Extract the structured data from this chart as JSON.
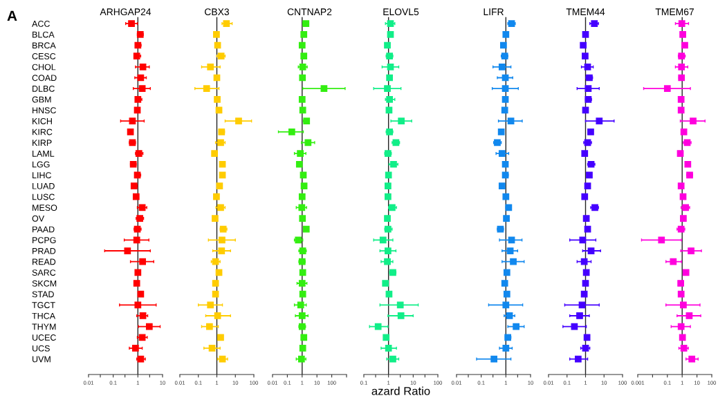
{
  "chart_data": [
    {
      "type": "scatter",
      "orientation": "horizontal",
      "title": "ARHGAP24",
      "log": "x",
      "marker": "square",
      "grid": false,
      "legend": false,
      "annotations": [
        "A"
      ],
      "categories": [
        "ACC",
        "BLCA",
        "BRCA",
        "CESC",
        "CHOL",
        "COAD",
        "DLBC",
        "GBM",
        "HNSC",
        "KICH",
        "KIRC",
        "KIRP",
        "LAML",
        "LGG",
        "LIHC",
        "LUAD",
        "LUSC",
        "MESO",
        "OV",
        "PAAD",
        "PCPG",
        "PRAD",
        "READ",
        "SARC",
        "SKCM",
        "STAD",
        "TGCT",
        "THCA",
        "THYM",
        "UCEC",
        "UCS",
        "UVM"
      ],
      "xlim": [
        0.01,
        10
      ],
      "xticks": [
        0.01,
        {
          "value": 0.03,
          "label": null
        },
        0.1,
        {
          "value": 0.3,
          "label": null
        },
        1,
        {
          "value": 3,
          "label": null
        },
        10
      ],
      "ref_lines": [
        {
          "axis": "x",
          "value": 1,
          "color": "#222222"
        }
      ],
      "series": [
        {
          "color": "#ff0000",
          "values": [
            0.55,
            1.25,
            1.0,
            0.9,
            1.6,
            1.3,
            1.5,
            1.0,
            0.95,
            0.6,
            0.5,
            0.6,
            1.1,
            0.65,
            0.95,
            0.7,
            0.85,
            1.5,
            1.2,
            0.95,
            0.9,
            0.38,
            1.55,
            1.0,
            0.9,
            1.3,
            1.0,
            1.6,
            2.9,
            1.5,
            0.8,
            1.3
          ],
          "errors": [
            [
              0.32,
              0.97
            ],
            [
              0.95,
              1.65
            ],
            [
              0.8,
              1.35
            ],
            [
              0.7,
              1.3
            ],
            [
              0.8,
              2.9
            ],
            [
              0.75,
              2.2
            ],
            [
              0.65,
              3.2
            ],
            [
              0.8,
              1.45
            ],
            [
              0.85,
              1.1
            ],
            [
              0.2,
              1.8
            ],
            [
              0.45,
              0.57
            ],
            [
              0.45,
              0.8
            ],
            [
              0.8,
              1.6
            ],
            [
              0.5,
              0.85
            ],
            [
              0.75,
              1.3
            ],
            [
              0.55,
              0.95
            ],
            [
              0.75,
              1.0
            ],
            [
              0.95,
              2.3
            ],
            [
              0.85,
              1.7
            ],
            [
              0.7,
              1.35
            ],
            [
              0.28,
              2.8
            ],
            [
              0.045,
              3.2
            ],
            [
              0.5,
              4.4
            ],
            [
              0.85,
              1.2
            ],
            [
              0.85,
              1.0
            ],
            [
              1.05,
              1.55
            ],
            [
              0.18,
              5.5
            ],
            [
              0.9,
              2.5
            ],
            [
              1.05,
              8
            ],
            [
              0.95,
              2.4
            ],
            [
              0.45,
              1.5
            ],
            [
              0.9,
              2.0
            ]
          ]
        }
      ]
    },
    {
      "type": "scatter",
      "orientation": "horizontal",
      "title": "CBX3",
      "log": "x",
      "marker": "square",
      "grid": false,
      "legend": false,
      "categories": [
        null,
        null,
        null,
        null,
        null,
        null,
        null,
        null,
        null,
        null,
        null,
        null,
        null,
        null,
        null,
        null,
        null,
        null,
        null,
        null,
        null,
        null,
        null,
        null,
        null,
        null,
        null,
        null,
        null,
        null,
        null,
        null
      ],
      "xlim": [
        0.01,
        100
      ],
      "xticks": [
        0.01,
        0.1,
        1,
        10,
        100
      ],
      "ref_lines": [
        {
          "axis": "x",
          "value": 1,
          "color": "#222222"
        }
      ],
      "series": [
        {
          "color": "#ffcc00",
          "values": [
            3.3,
            0.95,
            1.1,
            1.7,
            0.45,
            1.0,
            0.28,
            1.05,
            1.3,
            15,
            1.8,
            1.6,
            0.75,
            2.0,
            2.0,
            1.4,
            0.95,
            1.6,
            0.8,
            2.2,
            1.9,
            1.8,
            0.85,
            1.3,
            0.85,
            0.85,
            0.45,
            1.1,
            0.4,
            1.6,
            0.55,
            2.0
          ],
          "errors": [
            [
              1.9,
              6.7
            ],
            [
              0.8,
              1.1
            ],
            [
              0.95,
              1.3
            ],
            [
              1.0,
              2.8
            ],
            [
              0.15,
              1.5
            ],
            [
              0.85,
              1.15
            ],
            [
              0.065,
              1.3
            ],
            [
              0.85,
              1.3
            ],
            [
              1.15,
              1.5
            ],
            [
              2.8,
              75
            ],
            [
              1.3,
              2.6
            ],
            [
              0.85,
              2.8
            ],
            [
              0.55,
              1.05
            ],
            [
              1.6,
              2.5
            ],
            [
              1.7,
              2.4
            ],
            null,
            [
              0.8,
              1.15
            ],
            [
              0.9,
              2.8
            ],
            null,
            [
              1.5,
              3.5
            ],
            [
              0.35,
              10
            ],
            [
              0.6,
              5.5
            ],
            [
              0.5,
              1.5
            ],
            [
              1.05,
              1.6
            ],
            [
              0.75,
              0.95
            ],
            [
              0.72,
              1.0
            ],
            [
              0.1,
              2.0
            ],
            [
              0.25,
              5.5
            ],
            [
              0.15,
              1.2
            ],
            [
              1.35,
              1.9
            ],
            [
              0.2,
              1.5
            ],
            [
              1.1,
              3.8
            ]
          ]
        }
      ]
    },
    {
      "type": "scatter",
      "orientation": "horizontal",
      "title": "CNTNAP2",
      "log": "x",
      "marker": "square",
      "grid": false,
      "legend": false,
      "categories": [
        null,
        null,
        null,
        null,
        null,
        null,
        null,
        null,
        null,
        null,
        null,
        null,
        null,
        null,
        null,
        null,
        null,
        null,
        null,
        null,
        null,
        null,
        null,
        null,
        null,
        null,
        null,
        null,
        null,
        null,
        null,
        null
      ],
      "xlim": [
        0.01,
        1000
      ],
      "xticks": [
        0.01,
        0.1,
        1,
        10,
        100,
        {
          "value": 1000,
          "label": null
        }
      ],
      "ref_lines": [
        {
          "axis": "x",
          "value": 1,
          "color": "#222222"
        }
      ],
      "series": [
        {
          "color": "#33ee11",
          "values": [
            1.8,
            1.3,
            1.0,
            1.3,
            1.1,
            1.05,
            30,
            1.0,
            1.1,
            2.0,
            0.2,
            2.5,
            0.75,
            0.65,
            1.2,
            1.35,
            1.0,
            0.95,
            1.05,
            1.9,
            0.55,
            1.1,
            1.0,
            1.1,
            1.0,
            1.1,
            0.8,
            1.0,
            1.0,
            1.3,
            1.1,
            0.9
          ],
          "errors": [
            [
              1.1,
              2.8
            ],
            [
              1.1,
              1.5
            ],
            null,
            [
              1.1,
              1.5
            ],
            [
              0.55,
              2.2
            ],
            [
              0.9,
              1.2
            ],
            [
              1.1,
              800
            ],
            null,
            [
              0.95,
              1.3
            ],
            [
              1.2,
              3.0
            ],
            [
              0.025,
              1.2
            ],
            [
              0.9,
              7
            ],
            [
              0.3,
              1.8
            ],
            null,
            [
              1.0,
              1.35
            ],
            [
              1.15,
              1.6
            ],
            null,
            [
              0.4,
              2.0
            ],
            [
              0.75,
              1.4
            ],
            [
              1.5,
              2.3
            ],
            [
              0.3,
              1.1
            ],
            [
              0.6,
              1.9
            ],
            [
              0.6,
              1.6
            ],
            [
              0.95,
              1.3
            ],
            [
              0.45,
              2.1
            ],
            [
              0.95,
              1.3
            ],
            [
              0.3,
              1.9
            ],
            [
              0.35,
              2.5
            ],
            [
              0.6,
              1.7
            ],
            [
              1.1,
              1.5
            ],
            [
              0.8,
              1.5
            ],
            [
              0.4,
              1.8
            ]
          ]
        }
      ]
    },
    {
      "type": "scatter",
      "orientation": "horizontal",
      "title": "ELOVL5",
      "xlabel": "azard Ratio",
      "log": "x",
      "marker": "square",
      "grid": false,
      "legend": false,
      "categories": [
        null,
        null,
        null,
        null,
        null,
        null,
        null,
        null,
        null,
        null,
        null,
        null,
        null,
        null,
        null,
        null,
        null,
        null,
        null,
        null,
        null,
        null,
        null,
        null,
        null,
        null,
        null,
        null,
        null,
        null,
        null,
        null
      ],
      "xlim": [
        0.1,
        100
      ],
      "xticks": [
        0.1,
        {
          "value": 0.3,
          "label": null
        },
        1,
        {
          "value": 3,
          "label": null
        },
        10,
        {
          "value": 30,
          "label": null
        },
        100
      ],
      "ref_lines": [
        {
          "axis": "x",
          "value": 1,
          "color": "#222222"
        }
      ],
      "series": [
        {
          "color": "#11ee88",
          "values": [
            1.2,
            1.2,
            0.9,
            1.1,
            1.2,
            1.1,
            0.9,
            1.1,
            1.05,
            3.3,
            1.1,
            2.0,
            0.95,
            1.6,
            1.0,
            0.95,
            0.95,
            1.4,
            0.9,
            0.95,
            0.6,
            0.95,
            0.9,
            1.5,
            0.75,
            1.05,
            3.0,
            3.2,
            0.38,
            0.8,
            1.0,
            1.5
          ],
          "errors": [
            [
              0.75,
              1.8
            ],
            [
              1.05,
              1.35
            ],
            [
              0.8,
              1.0
            ],
            [
              0.8,
              1.5
            ],
            [
              0.55,
              2.6
            ],
            [
              0.9,
              1.3
            ],
            [
              0.25,
              3.2
            ],
            [
              0.75,
              1.8
            ],
            [
              0.9,
              1.2
            ],
            [
              1.25,
              8.7
            ],
            [
              0.8,
              1.5
            ],
            [
              1.4,
              2.8
            ],
            [
              0.7,
              1.3
            ],
            [
              1.05,
              2.4
            ],
            [
              0.8,
              1.2
            ],
            [
              0.8,
              1.1
            ],
            [
              0.8,
              1.1
            ],
            [
              1.0,
              2.1
            ],
            [
              0.8,
              1.05
            ],
            [
              0.7,
              1.4
            ],
            [
              0.25,
              1.5
            ],
            [
              0.45,
              2.0
            ],
            [
              0.5,
              1.5
            ],
            [
              1.1,
              2.0
            ],
            [
              0.65,
              0.85
            ],
            [
              0.9,
              1.2
            ],
            [
              0.45,
              16
            ],
            [
              0.95,
              10
            ],
            [
              0.17,
              0.95
            ],
            [
              0.7,
              0.95
            ],
            [
              0.5,
              2.1
            ],
            [
              0.85,
              2.6
            ]
          ]
        }
      ]
    },
    {
      "type": "scatter",
      "orientation": "horizontal",
      "title": "LIFR",
      "log": "x",
      "marker": "square",
      "grid": false,
      "legend": false,
      "categories": [
        null,
        null,
        null,
        null,
        null,
        null,
        null,
        null,
        null,
        null,
        null,
        null,
        null,
        null,
        null,
        null,
        null,
        null,
        null,
        null,
        null,
        null,
        null,
        null,
        null,
        null,
        null,
        null,
        null,
        null,
        null,
        null
      ],
      "xlim": [
        0.01,
        10
      ],
      "xticks": [
        0.01,
        {
          "value": 0.03,
          "label": null
        },
        0.1,
        {
          "value": 0.3,
          "label": null
        },
        1,
        {
          "value": 3,
          "label": null
        },
        10
      ],
      "ref_lines": [
        {
          "axis": "x",
          "value": 1,
          "color": "#222222"
        }
      ],
      "series": [
        {
          "color": "#1188ee",
          "values": [
            1.7,
            1.0,
            0.8,
            0.9,
            0.7,
            0.95,
            0.95,
            0.95,
            0.9,
            1.6,
            0.65,
            0.45,
            0.7,
            0.95,
            0.95,
            0.7,
            1.0,
            1.3,
            1.05,
            0.6,
            1.7,
            1.5,
            2.0,
            1.1,
            0.9,
            1.1,
            1.0,
            1.4,
            2.6,
            1.2,
            1.0,
            0.33
          ],
          "errors": [
            [
              1.2,
              2.4
            ],
            [
              0.9,
              1.15
            ],
            [
              0.7,
              0.95
            ],
            [
              0.65,
              1.2
            ],
            [
              0.3,
              1.6
            ],
            [
              0.45,
              1.9
            ],
            [
              0.28,
              3.2
            ],
            [
              0.8,
              1.1
            ],
            [
              0.8,
              1.0
            ],
            [
              0.5,
              4.6
            ],
            [
              0.58,
              0.72
            ],
            [
              0.32,
              0.65
            ],
            [
              0.4,
              1.3
            ],
            [
              0.85,
              1.1
            ],
            [
              0.75,
              1.25
            ],
            [
              0.62,
              0.8
            ],
            [
              0.88,
              1.12
            ],
            [
              1.0,
              1.6
            ],
            [
              0.9,
              1.25
            ],
            [
              0.45,
              0.8
            ],
            [
              0.55,
              4.5
            ],
            [
              0.7,
              3.0
            ],
            [
              0.7,
              5.5
            ],
            [
              0.9,
              1.3
            ],
            [
              0.8,
              1.0
            ],
            [
              0.95,
              1.3
            ],
            [
              0.2,
              4.8
            ],
            [
              0.85,
              2.3
            ],
            [
              1.2,
              5.5
            ],
            [
              0.95,
              1.6
            ],
            [
              0.55,
              1.8
            ],
            [
              0.065,
              1.6
            ]
          ]
        }
      ]
    },
    {
      "type": "scatter",
      "orientation": "horizontal",
      "title": "TMEM44",
      "log": "x",
      "marker": "square",
      "grid": false,
      "legend": false,
      "categories": [
        null,
        null,
        null,
        null,
        null,
        null,
        null,
        null,
        null,
        null,
        null,
        null,
        null,
        null,
        null,
        null,
        null,
        null,
        null,
        null,
        null,
        null,
        null,
        null,
        null,
        null,
        null,
        null,
        null,
        null,
        null,
        null
      ],
      "xlim": [
        0.01,
        100
      ],
      "xticks": [
        0.01,
        0.1,
        1,
        10,
        100
      ],
      "ref_lines": [
        {
          "axis": "x",
          "value": 1,
          "color": "#222222"
        }
      ],
      "series": [
        {
          "color": "#4400ff",
          "values": [
            3.0,
            1.0,
            0.75,
            0.95,
            1.3,
            1.6,
            1.4,
            1.4,
            1.0,
            5.5,
            1.9,
            1.3,
            0.9,
            2.0,
            1.6,
            1.3,
            0.9,
            3.2,
            1.1,
            1.3,
            0.7,
            2.0,
            0.85,
            1.1,
            1.0,
            0.85,
            0.65,
            0.48,
            0.25,
            1.2,
            1.0,
            0.4
          ],
          "errors": [
            [
              1.7,
              5.0
            ],
            [
              0.9,
              1.1
            ],
            [
              0.6,
              0.95
            ],
            [
              0.8,
              1.15
            ],
            [
              0.6,
              2.6
            ],
            [
              1.05,
              2.4
            ],
            [
              0.35,
              5.5
            ],
            [
              1.0,
              2.1
            ],
            [
              0.9,
              1.15
            ],
            [
              1.0,
              35
            ],
            [
              1.65,
              2.2
            ],
            [
              0.8,
              2.1
            ],
            [
              0.7,
              1.15
            ],
            [
              1.3,
              3.2
            ],
            [
              1.25,
              2.0
            ],
            [
              1.1,
              1.6
            ],
            [
              0.8,
              1.0
            ],
            [
              1.9,
              5.0
            ],
            [
              0.95,
              1.3
            ],
            [
              1.0,
              1.7
            ],
            [
              0.14,
              3.6
            ],
            [
              0.7,
              6.5
            ],
            [
              0.35,
              2.0
            ],
            [
              0.9,
              1.4
            ],
            [
              0.85,
              1.15
            ],
            [
              0.65,
              1.05
            ],
            [
              0.075,
              5.5
            ],
            [
              0.14,
              1.6
            ],
            [
              0.06,
              1.1
            ],
            [
              1.0,
              1.45
            ],
            [
              0.55,
              1.7
            ],
            [
              0.14,
              1.3
            ]
          ]
        }
      ]
    },
    {
      "type": "scatter",
      "orientation": "horizontal",
      "title": "TMEM67",
      "log": "x",
      "marker": "square",
      "grid": false,
      "legend": false,
      "categories": [
        null,
        null,
        null,
        null,
        null,
        null,
        null,
        null,
        null,
        null,
        null,
        null,
        null,
        null,
        null,
        null,
        null,
        null,
        null,
        null,
        null,
        null,
        null,
        null,
        null,
        null,
        null,
        null,
        null,
        null,
        null,
        null
      ],
      "xlim": [
        0.001,
        100
      ],
      "xticks": [
        0.001,
        {
          "value": 0.01,
          "label": null
        },
        0.1,
        1,
        10,
        100
      ],
      "ref_lines": [
        {
          "axis": "x",
          "value": 1,
          "color": "#222222"
        }
      ],
      "series": [
        {
          "color": "#ff00dd",
          "values": [
            0.95,
            1.1,
            1.5,
            0.9,
            0.9,
            0.9,
            0.1,
            0.85,
            0.85,
            5.5,
            1.3,
            2.2,
            0.75,
            2.4,
            3.2,
            0.85,
            1.15,
            1.7,
            1.2,
            0.85,
            0.04,
            4.0,
            0.25,
            1.8,
            0.8,
            0.85,
            1.2,
            3.0,
            0.85,
            1.05,
            1.3,
            4.5
          ],
          "errors": [
            [
              0.35,
              2.7
            ],
            [
              0.9,
              1.4
            ],
            [
              1.2,
              1.8
            ],
            [
              0.55,
              1.6
            ],
            [
              0.35,
              2.4
            ],
            [
              0.6,
              1.3
            ],
            [
              0.0025,
              3.6
            ],
            [
              0.7,
              1.05
            ],
            [
              0.7,
              1.05
            ],
            [
              0.75,
              35
            ],
            [
              1.0,
              1.8
            ],
            [
              1.2,
              4.0
            ],
            [
              0.6,
              0.95
            ],
            [
              1.9,
              2.9
            ],
            [
              2.0,
              5.0
            ],
            [
              0.7,
              1.0
            ],
            [
              0.95,
              1.4
            ],
            [
              0.85,
              3.2
            ],
            null,
            [
              0.45,
              1.5
            ],
            [
              0.0018,
              0.9
            ],
            [
              0.8,
              20
            ],
            [
              0.08,
              0.9
            ],
            [
              1.3,
              2.5
            ],
            null,
            [
              0.6,
              1.15
            ],
            [
              0.08,
              16
            ],
            [
              0.45,
              18
            ],
            [
              0.18,
              3.6
            ],
            [
              0.85,
              1.3
            ],
            [
              0.6,
              2.6
            ],
            [
              1.8,
              12
            ]
          ]
        }
      ]
    }
  ]
}
